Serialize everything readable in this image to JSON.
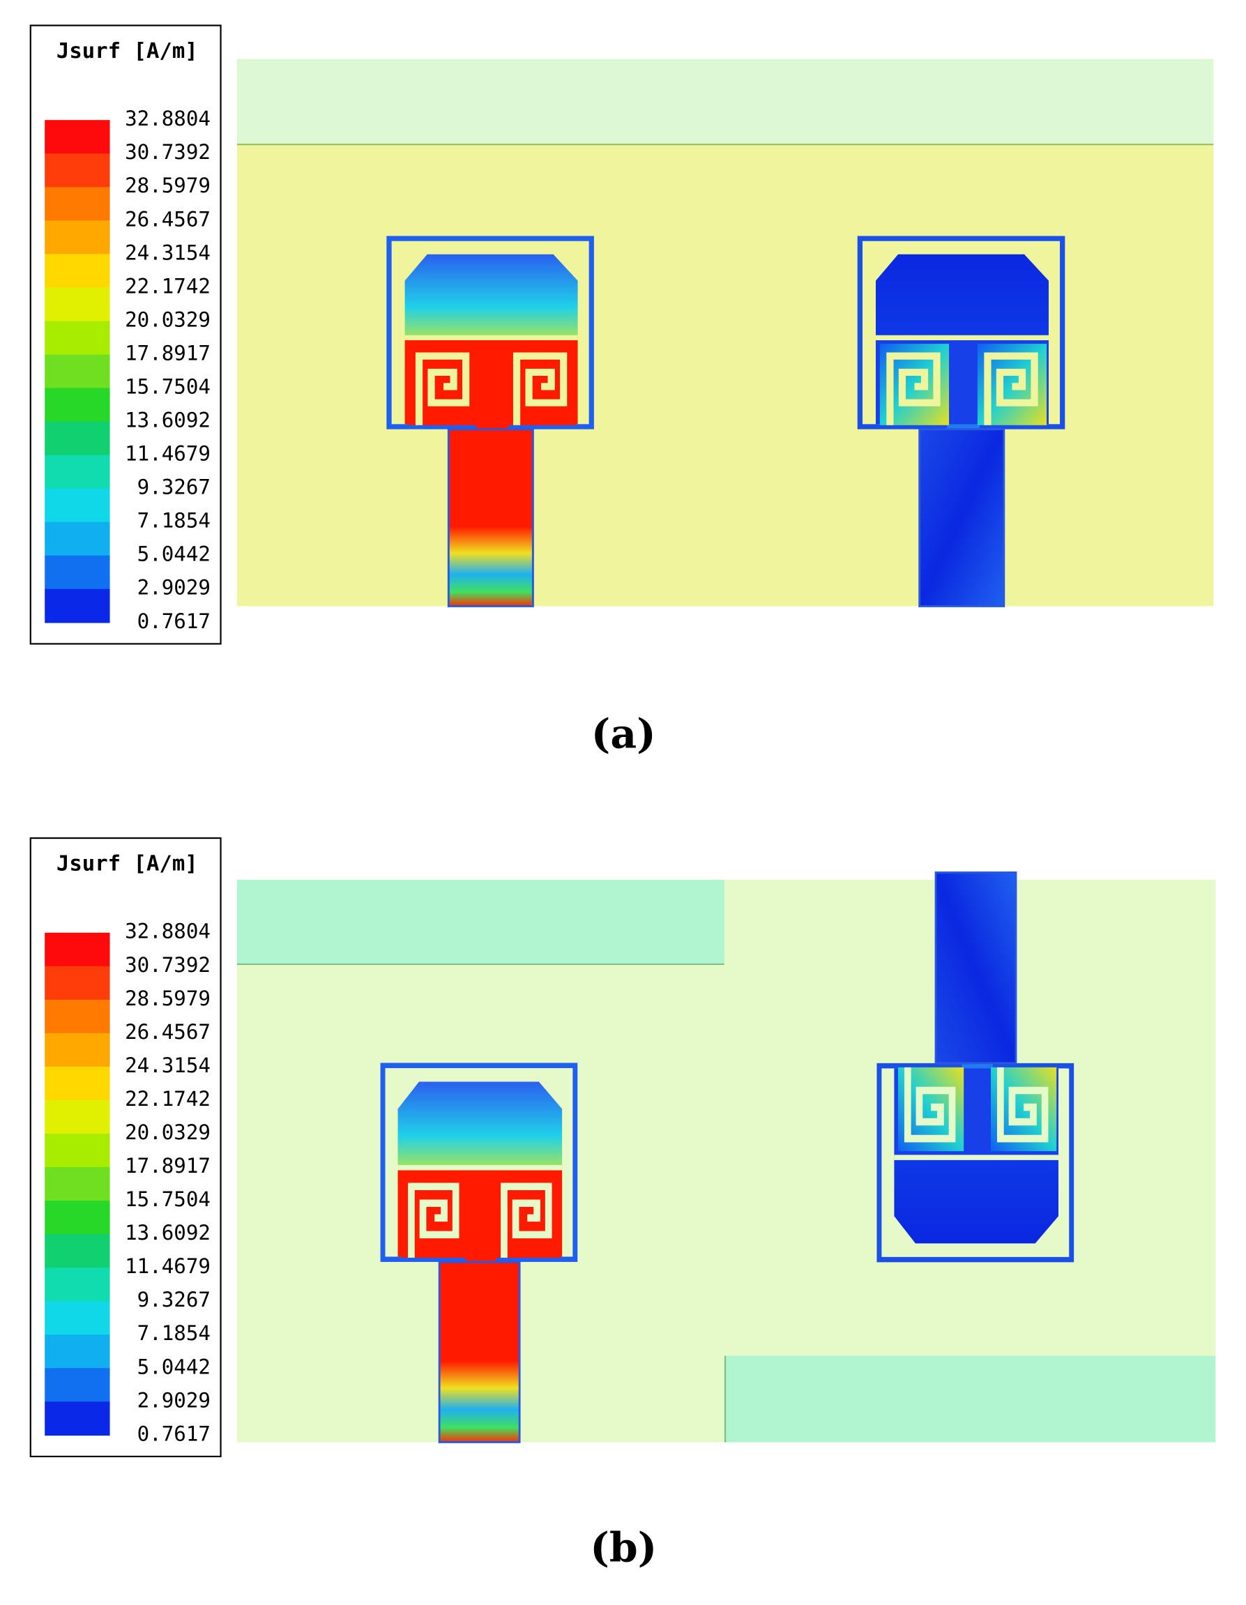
{
  "panels": [
    {
      "legend": {
        "title": "Jsurf [A/m]",
        "labels": [
          "32.8804",
          "30.7392",
          "28.5979",
          "26.4567",
          "24.3154",
          "22.1742",
          "20.0329",
          "17.8917",
          "15.7504",
          "13.6092",
          "11.4679",
          "9.3267",
          "7.1854",
          "5.0442",
          "2.9029",
          "0.7617"
        ],
        "colors": [
          "#ff0a0a",
          "#ff3d0a",
          "#ff7a00",
          "#ffa800",
          "#ffd800",
          "#e0f000",
          "#a8ec00",
          "#6ee020",
          "#28d828",
          "#10d070",
          "#10dcb0",
          "#10d8e8",
          "#10b0f0",
          "#1070f0",
          "#0a28e8"
        ]
      },
      "caption": "(a)"
    },
    {
      "legend": {
        "title": "Jsurf [A/m]",
        "labels": [
          "32.8804",
          "30.7392",
          "28.5979",
          "26.4567",
          "24.3154",
          "22.1742",
          "20.0329",
          "17.8917",
          "15.7504",
          "13.6092",
          "11.4679",
          "9.3267",
          "7.1854",
          "5.0442",
          "2.9029",
          "0.7617"
        ],
        "colors": [
          "#ff0a0a",
          "#ff3d0a",
          "#ff7a00",
          "#ffa800",
          "#ffd800",
          "#e0f000",
          "#a8ec00",
          "#6ee020",
          "#28d828",
          "#10d070",
          "#10dcb0",
          "#10d8e8",
          "#10b0f0",
          "#1070f0",
          "#0a28e8"
        ]
      },
      "caption": "(b)"
    }
  ]
}
